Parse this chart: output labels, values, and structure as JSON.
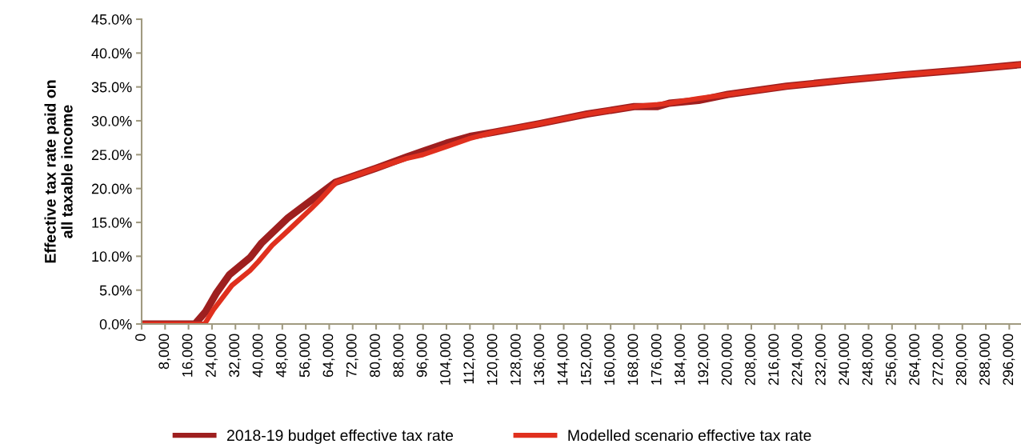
{
  "chart_data": {
    "type": "line",
    "ylabel": "Effective tax rate paid on\nall taxable income",
    "xlim": [
      0,
      300000
    ],
    "xticks": [
      {
        "value": 0,
        "label": "0"
      },
      {
        "value": 8000,
        "label": "8,000"
      },
      {
        "value": 16000,
        "label": "16,000"
      },
      {
        "value": 24000,
        "label": "24,000"
      },
      {
        "value": 32000,
        "label": "32,000"
      },
      {
        "value": 40000,
        "label": "40,000"
      },
      {
        "value": 48000,
        "label": "48,000"
      },
      {
        "value": 56000,
        "label": "56,000"
      },
      {
        "value": 64000,
        "label": "64,000"
      },
      {
        "value": 72000,
        "label": "72,000"
      },
      {
        "value": 80000,
        "label": "80,000"
      },
      {
        "value": 88000,
        "label": "88,000"
      },
      {
        "value": 96000,
        "label": "96,000"
      },
      {
        "value": 104000,
        "label": "104,000"
      },
      {
        "value": 112000,
        "label": "112,000"
      },
      {
        "value": 120000,
        "label": "120,000"
      },
      {
        "value": 128000,
        "label": "128,000"
      },
      {
        "value": 136000,
        "label": "136,000"
      },
      {
        "value": 144000,
        "label": "144,000"
      },
      {
        "value": 152000,
        "label": "152,000"
      },
      {
        "value": 160000,
        "label": "160,000"
      },
      {
        "value": 168000,
        "label": "168,000"
      },
      {
        "value": 176000,
        "label": "176,000"
      },
      {
        "value": 184000,
        "label": "184,000"
      },
      {
        "value": 192000,
        "label": "192,000"
      },
      {
        "value": 200000,
        "label": "200,000"
      },
      {
        "value": 208000,
        "label": "208,000"
      },
      {
        "value": 216000,
        "label": "216,000"
      },
      {
        "value": 224000,
        "label": "224,000"
      },
      {
        "value": 232000,
        "label": "232,000"
      },
      {
        "value": 240000,
        "label": "240,000"
      },
      {
        "value": 248000,
        "label": "248,000"
      },
      {
        "value": 256000,
        "label": "256,000"
      },
      {
        "value": 264000,
        "label": "264,000"
      },
      {
        "value": 272000,
        "label": "272,000"
      },
      {
        "value": 280000,
        "label": "280,000"
      },
      {
        "value": 288000,
        "label": "288,000"
      },
      {
        "value": 296000,
        "label": "296,000"
      }
    ],
    "ylim": [
      0,
      45
    ],
    "yticks": [
      {
        "value": 0,
        "label": "0.0%"
      },
      {
        "value": 5,
        "label": "5.0%"
      },
      {
        "value": 10,
        "label": "10.0%"
      },
      {
        "value": 15,
        "label": "15.0%"
      },
      {
        "value": 20,
        "label": "20.0%"
      },
      {
        "value": 25,
        "label": "25.0%"
      },
      {
        "value": 30,
        "label": "30.0%"
      },
      {
        "value": 35,
        "label": "35.0%"
      },
      {
        "value": 40,
        "label": "40.0%"
      },
      {
        "value": 45,
        "label": "45.0%"
      }
    ],
    "grid": false,
    "legend": "bottom",
    "marker": "none",
    "line_style": "solid",
    "series": [
      {
        "name": "2018-19 budget effective tax rate",
        "color": "#9e1f1f",
        "x": [
          0,
          18200,
          21800,
          25400,
          30000,
          37000,
          41000,
          50000,
          58000,
          66000,
          80000,
          90000,
          96000,
          104000,
          112000,
          120000,
          136000,
          152000,
          168000,
          176000,
          180000,
          190000,
          200000,
          220000,
          240000,
          260000,
          280000,
          300000
        ],
        "values": [
          0,
          0,
          1.8,
          4.5,
          7.3,
          9.8,
          12,
          15.7,
          18.3,
          20.9,
          23,
          24.6,
          25.5,
          26.7,
          27.7,
          28.3,
          29.6,
          31,
          32.1,
          32.1,
          32.6,
          33,
          33.9,
          35.1,
          36,
          36.8,
          37.5,
          38.3
        ]
      },
      {
        "name": "Modelled scenario effective tax rate",
        "color": "#e0301e",
        "x": [
          0,
          21500,
          24500,
          30800,
          37000,
          39800,
          44500,
          50000,
          58000,
          60800,
          66300,
          80000,
          90000,
          96000,
          104000,
          112000,
          120000,
          136000,
          152000,
          168000,
          176000,
          180000,
          190000,
          200000,
          220000,
          240000,
          260000,
          280000,
          300000
        ],
        "values": [
          0,
          0,
          2.1,
          5.7,
          7.9,
          9.2,
          11.6,
          13.8,
          17.1,
          18.3,
          20.9,
          23,
          24.4,
          25,
          26.2,
          27.4,
          28.3,
          29.6,
          31,
          32.1,
          32.4,
          32.6,
          33.3,
          33.9,
          35.1,
          36,
          36.8,
          37.5,
          38.3
        ]
      }
    ]
  }
}
